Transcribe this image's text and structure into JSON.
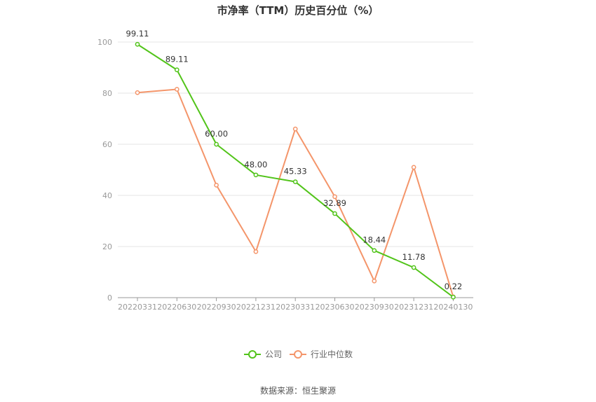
{
  "source": "数据来源：恒生聚源",
  "colors": {
    "company": "#52c41a",
    "industry": "#f4956a",
    "grid": "#e6e6e6",
    "axis": "#999999"
  },
  "chart_data": {
    "type": "line",
    "title": "市净率（TTM）历史百分位（%）",
    "categories": [
      "20220331",
      "20220630",
      "20220930",
      "20221231",
      "20230331",
      "20230630",
      "20230930",
      "20231231",
      "20240130"
    ],
    "ylim": [
      0,
      100
    ],
    "yticks": [
      0,
      20,
      40,
      60,
      80,
      100
    ],
    "grid": true,
    "legend_position": "bottom",
    "series": [
      {
        "name": "公司",
        "values": [
          99.11,
          89.11,
          60.0,
          48.0,
          45.33,
          32.89,
          18.44,
          11.78,
          0.22
        ],
        "labels": [
          "99.11",
          "89.11",
          "60.00",
          "48.00",
          "45.33",
          "32.89",
          "18.44",
          "11.78",
          "0.22"
        ]
      },
      {
        "name": "行业中位数",
        "values": [
          80.2,
          81.5,
          44.0,
          18.0,
          66.0,
          39.5,
          6.5,
          51.0,
          0.3
        ]
      }
    ]
  }
}
